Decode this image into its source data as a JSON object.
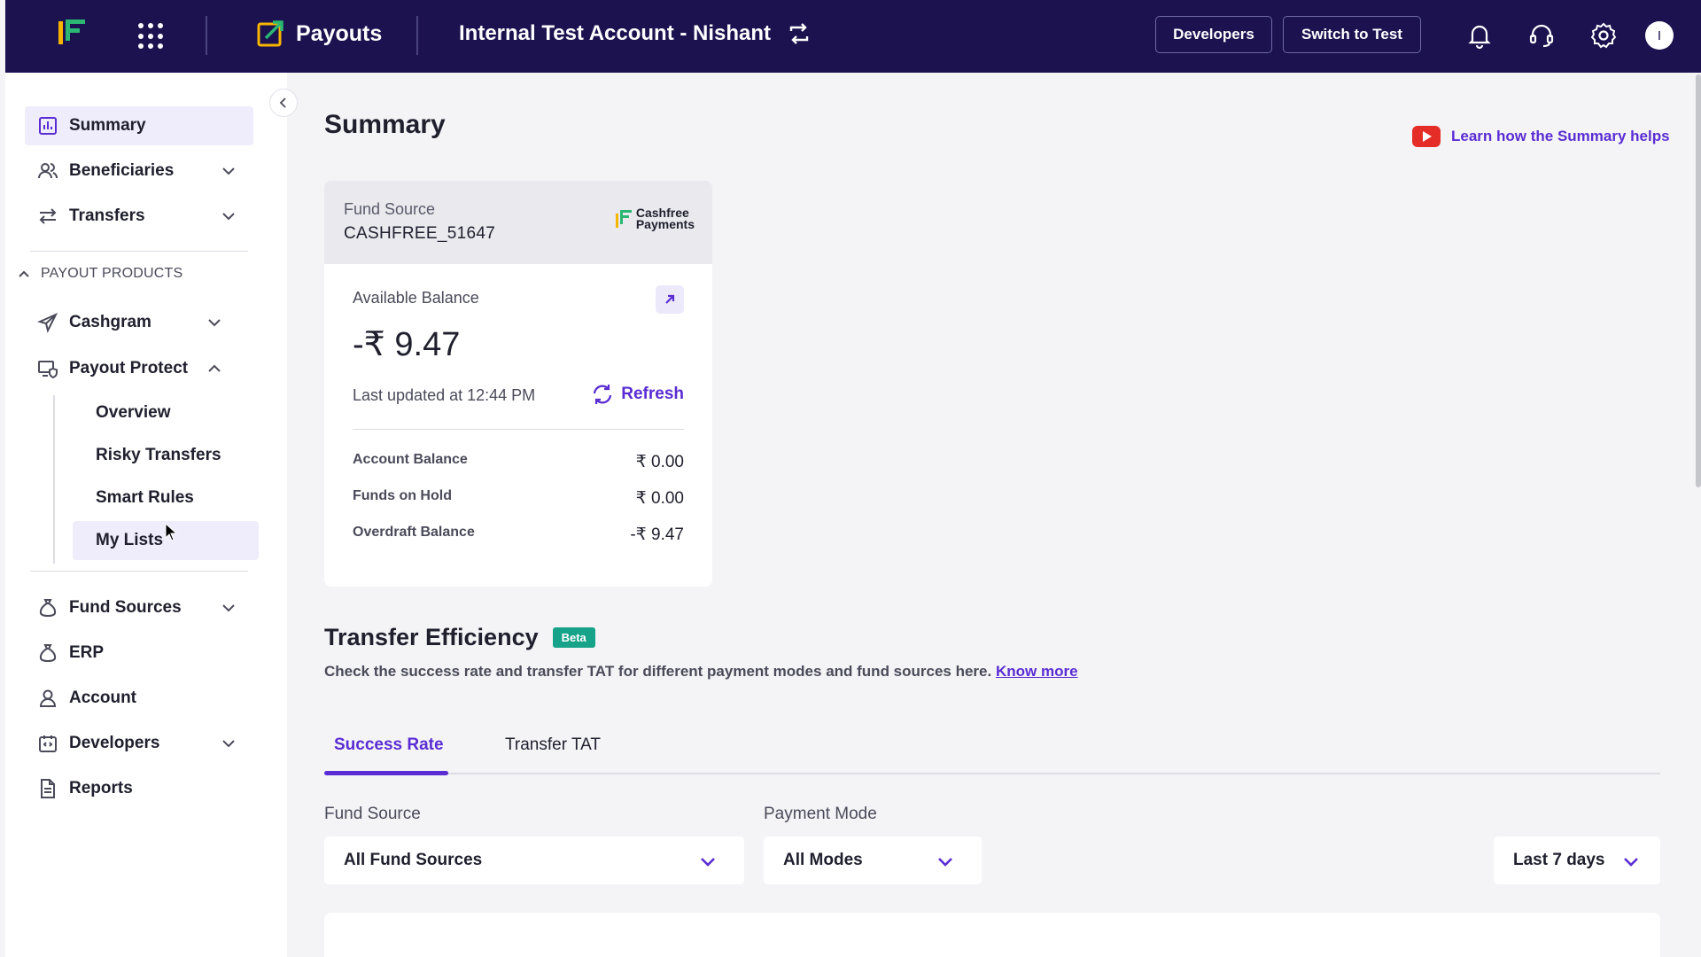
{
  "topbar": {
    "product_name": "Payouts",
    "account_name": "Internal Test Account - Nishant",
    "developers_label": "Developers",
    "switch_label": "Switch to Test",
    "avatar_initial": "I"
  },
  "sidebar": {
    "summary": "Summary",
    "beneficiaries": "Beneficiaries",
    "transfers": "Transfers",
    "section_title": "PAYOUT PRODUCTS",
    "cashgram": "Cashgram",
    "payout_protect": "Payout Protect",
    "sub": {
      "overview": "Overview",
      "risky": "Risky Transfers",
      "smart_rules": "Smart Rules",
      "my_lists": "My Lists"
    },
    "fund_sources": "Fund Sources",
    "erp": "ERP",
    "account": "Account",
    "developers": "Developers",
    "reports": "Reports"
  },
  "main": {
    "title": "Summary",
    "learn_link": "Learn how the Summary helps",
    "fund_source_label": "Fund Source",
    "fund_source_value": "CASHFREE_51647",
    "cf_logo_line1": "Cashfree",
    "cf_logo_line2": "Payments",
    "available_balance_label": "Available Balance",
    "available_balance_value": "-₹ 9.47",
    "last_updated": "Last updated at 12:44 PM",
    "refresh_label": "Refresh",
    "balances": [
      {
        "label": "Account Balance",
        "value": "₹ 0.00"
      },
      {
        "label": "Funds on Hold",
        "value": "₹ 0.00"
      },
      {
        "label": "Overdraft Balance",
        "value": "-₹ 9.47"
      }
    ],
    "te_title": "Transfer Efficiency",
    "beta_label": "Beta",
    "te_desc": "Check the success rate and transfer TAT for different payment modes and fund sources here.",
    "know_more": "Know more",
    "tabs": [
      "Success Rate",
      "Transfer TAT"
    ],
    "fund_source_filter_label": "Fund Source",
    "fund_source_filter_value": "All Fund Sources",
    "payment_mode_label": "Payment Mode",
    "payment_mode_value": "All Modes",
    "date_range_value": "Last 7 days"
  },
  "colors": {
    "topbar_bg": "#1b124f",
    "accent": "#5a2cd3",
    "beta_bg": "#17a389",
    "youtube_red": "#e52d27"
  }
}
